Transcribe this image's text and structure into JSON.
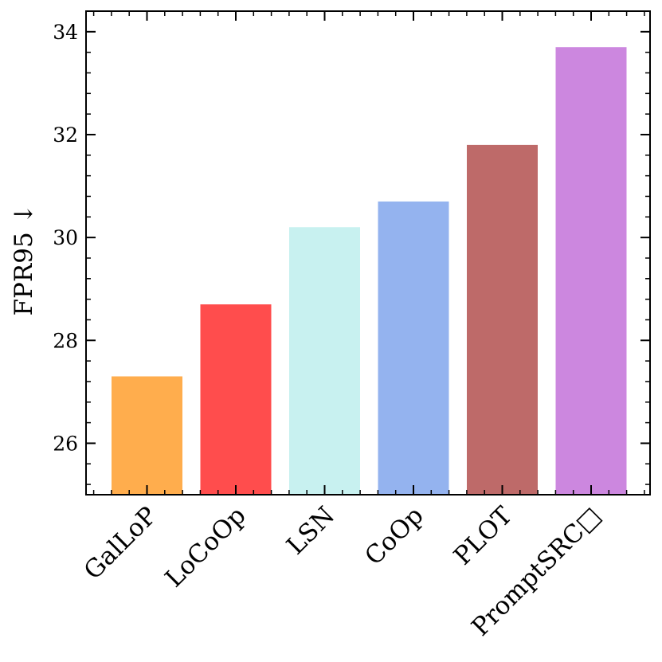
{
  "chart_data": {
    "type": "bar",
    "title": "",
    "xlabel": "",
    "ylabel": "FPR95 ↓",
    "categories": [
      "GalLoP",
      "LoCoOp",
      "LSN",
      "CoOp",
      "PLOT",
      "PromptSRC□"
    ],
    "values": [
      27.3,
      28.7,
      30.2,
      30.7,
      31.8,
      33.7
    ],
    "colors": [
      "#FFAD4D",
      "#FF4D4D",
      "#C8F1F0",
      "#94B3EF",
      "#BE6A69",
      "#CC87DF"
    ],
    "ylim": [
      25.0,
      34.4
    ],
    "yticks": [
      26,
      28,
      30,
      32,
      34
    ],
    "grid": false,
    "legend": "none"
  }
}
